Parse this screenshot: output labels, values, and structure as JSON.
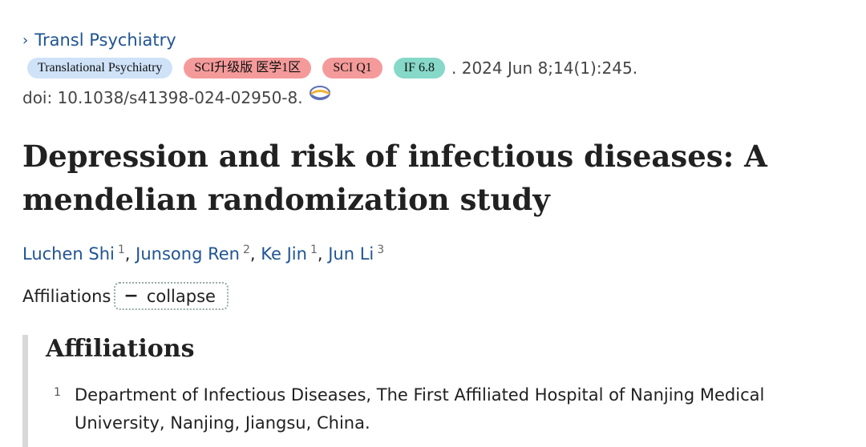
{
  "journal_link": {
    "chevron": "›",
    "label": "Transl Psychiatry"
  },
  "badges": [
    {
      "label": "Translational Psychiatry"
    },
    {
      "label": "SCI升级版 医学1区"
    },
    {
      "label": "SCI Q1"
    },
    {
      "label": "IF 6.8"
    }
  ],
  "citation": ". 2024 Jun 8;14(1):245.",
  "doi": {
    "text": "doi: 10.1038/s41398-024-02950-8.",
    "icon": "doi-link-icon"
  },
  "title": "Depression and risk of infectious diseases: A mendelian randomization study",
  "authors": [
    {
      "name": "Luchen Shi",
      "aff": "1",
      "sep": ","
    },
    {
      "name": "Junsong Ren",
      "aff": "2",
      "sep": ","
    },
    {
      "name": "Ke Jin",
      "aff": "1",
      "sep": ","
    },
    {
      "name": "Jun Li",
      "aff": "3",
      "sep": ""
    }
  ],
  "affiliations_toggle": {
    "label": "Affiliations",
    "button_symbol": "−",
    "button_label": "collapse"
  },
  "affiliations": {
    "heading": "Affiliations",
    "items": [
      {
        "num": "1",
        "text": "Department of Infectious Diseases, The First Affiliated Hospital of Nanjing Medical University, Nanjing, Jiangsu, China."
      }
    ]
  },
  "colors": {
    "link": "#205493",
    "badge_journal": "#cfe2f8",
    "badge_sci": "#f59a9a",
    "badge_if": "#86d8c8"
  }
}
